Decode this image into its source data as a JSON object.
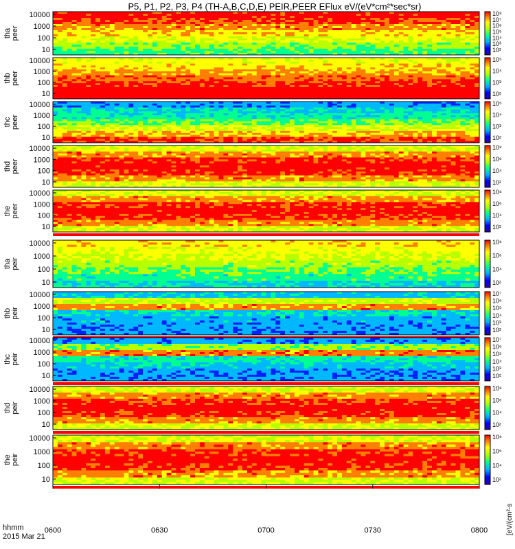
{
  "title": "P5, P1, P2, P3, P4 (TH-A,B,C,D,E) PEIR,PEER EFlux eV/(eV*cm²*sec*sr)",
  "colorbar_label": "[eV/(cm²-s",
  "time_axis": {
    "label_top": "hhmm",
    "label_bottom": "2015 Mar 21",
    "ticks": [
      "0600",
      "0630",
      "0700",
      "0730",
      "0800"
    ],
    "range_minutes": [
      0,
      120
    ]
  },
  "chart_data": [
    {
      "type": "heatmap",
      "probe": "tha",
      "species": "peer",
      "name_lines": [
        "tha",
        "peer"
      ],
      "y_scale": "log",
      "ylim": [
        7,
        30000
      ],
      "y_ticks": [
        "10000",
        "1000",
        "100",
        "10"
      ],
      "cbar_ticks": [
        "10⁸",
        "10⁷",
        "10⁶",
        "10⁵",
        "10⁴",
        "10³",
        "10²"
      ],
      "red_flag_bar": false,
      "colors": [
        "#ff0000",
        "#ff6600",
        "#ffd700",
        "#ffff00",
        "#7cfc00",
        "#00ff7f",
        "#00e5ff"
      ],
      "description_pattern": "bands"
    },
    {
      "type": "heatmap",
      "probe": "thb",
      "species": "peer",
      "name_lines": [
        "thb",
        "peer"
      ],
      "y_scale": "log",
      "ylim": [
        7,
        30000
      ],
      "y_ticks": [
        "10000",
        "1000",
        "100",
        "10"
      ],
      "cbar_ticks": [
        "10⁵",
        "10⁴",
        "10³",
        "10²"
      ],
      "red_flag_bar": false
    },
    {
      "type": "heatmap",
      "probe": "thc",
      "species": "peer",
      "name_lines": [
        "thc",
        "peer"
      ],
      "y_scale": "log",
      "ylim": [
        7,
        30000
      ],
      "y_ticks": [
        "10000",
        "1000",
        "100",
        "10"
      ],
      "cbar_ticks": [
        "10⁵",
        "10⁴",
        "10³",
        "10²"
      ],
      "red_flag_bar": false
    },
    {
      "type": "heatmap",
      "probe": "thd",
      "species": "peer",
      "name_lines": [
        "thd",
        "peer"
      ],
      "y_scale": "log",
      "ylim": [
        7,
        30000
      ],
      "y_ticks": [
        "10000",
        "1000",
        "100",
        "10"
      ],
      "cbar_ticks": [
        "10⁸",
        "10⁶",
        "10⁴",
        "10²"
      ],
      "red_flag_bar": false
    },
    {
      "type": "heatmap",
      "probe": "the",
      "species": "peer",
      "name_lines": [
        "the",
        "peer"
      ],
      "y_scale": "log",
      "ylim": [
        7,
        30000
      ],
      "y_ticks": [
        "10000",
        "1000",
        "100",
        "10"
      ],
      "cbar_ticks": [
        "10⁸",
        "10⁶",
        "10⁴",
        "10²"
      ],
      "red_flag_bar": true
    },
    {
      "type": "heatmap",
      "probe": "tha",
      "species": "peir",
      "name_lines": [
        "tha",
        "peir"
      ],
      "y_scale": "log",
      "ylim": [
        5,
        30000
      ],
      "y_ticks": [
        "10000",
        "1000",
        "100",
        "10"
      ],
      "cbar_ticks": [
        "10⁸",
        "10⁶",
        "10⁴",
        "10²"
      ],
      "red_flag_bar": false
    },
    {
      "type": "heatmap",
      "probe": "thb",
      "species": "peir",
      "name_lines": [
        "thb",
        "peir"
      ],
      "y_scale": "log",
      "ylim": [
        5,
        30000
      ],
      "y_ticks": [
        "10000",
        "1000",
        "100",
        "10"
      ],
      "cbar_ticks": [
        "10⁷",
        "10⁶",
        "10⁵",
        "10⁴",
        "10³",
        "10²"
      ],
      "red_flag_bar": true
    },
    {
      "type": "heatmap",
      "probe": "thc",
      "species": "peir",
      "name_lines": [
        "thc",
        "peir"
      ],
      "y_scale": "log",
      "ylim": [
        5,
        30000
      ],
      "y_ticks": [
        "10000",
        "1000",
        "100",
        "10"
      ],
      "cbar_ticks": [
        "10⁷",
        "10⁶",
        "10⁵",
        "10⁴",
        "10³",
        "10²"
      ],
      "red_flag_bar": true
    },
    {
      "type": "heatmap",
      "probe": "thd",
      "species": "peir",
      "name_lines": [
        "thd",
        "peir"
      ],
      "y_scale": "log",
      "ylim": [
        5,
        30000
      ],
      "y_ticks": [
        "10000",
        "1000",
        "100",
        "10"
      ],
      "cbar_ticks": [
        "10⁸",
        "10⁶",
        "10⁴",
        "10²"
      ],
      "red_flag_bar": true
    },
    {
      "type": "heatmap",
      "probe": "the",
      "species": "peir",
      "name_lines": [
        "the",
        "peir"
      ],
      "y_scale": "log",
      "ylim": [
        5,
        30000
      ],
      "y_ticks": [
        "10000",
        "1000",
        "100",
        "10"
      ],
      "cbar_ticks": [
        "10⁸",
        "10⁶",
        "10⁴",
        "10²"
      ],
      "red_flag_bar": true
    }
  ]
}
